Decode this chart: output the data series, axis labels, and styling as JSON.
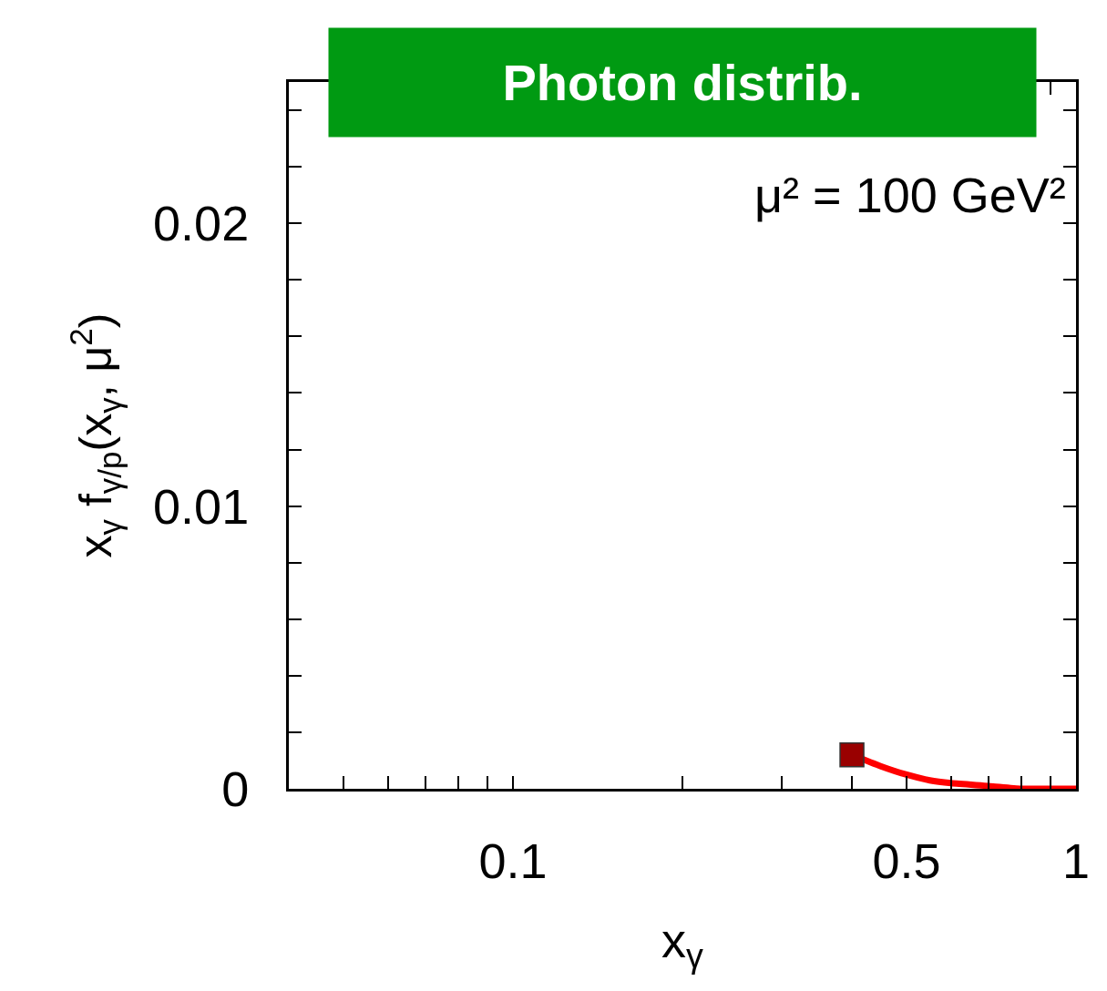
{
  "chart_data": {
    "type": "line",
    "title": "Photon distrib.",
    "xlabel": "x$_{γ}$",
    "ylabel": "x$_{γ}$ f$_{γ/p}$(x$_{γ}$, μ$^{2}$)",
    "annotations": [
      "μ² = 100 GeV²"
    ],
    "log": "x",
    "xlim": [
      0.04,
      1
    ],
    "ylim": [
      0,
      0.025
    ],
    "xticks": [
      {
        "value": 0.04,
        "label": null
      },
      {
        "value": 0.05,
        "label": null
      },
      {
        "value": 0.06,
        "label": null
      },
      {
        "value": 0.07,
        "label": null
      },
      {
        "value": 0.08,
        "label": null
      },
      {
        "value": 0.09,
        "label": null
      },
      0.1,
      {
        "value": 0.2,
        "label": null
      },
      {
        "value": 0.3,
        "label": null
      },
      {
        "value": 0.4,
        "label": null
      },
      0.5,
      {
        "value": 0.6,
        "label": null
      },
      {
        "value": 0.7,
        "label": null
      },
      {
        "value": 0.8,
        "label": null
      },
      {
        "value": 0.9,
        "label": null
      },
      1
    ],
    "yticks": [
      0,
      {
        "value": 0.002,
        "label": null
      },
      {
        "value": 0.004,
        "label": null
      },
      {
        "value": 0.006,
        "label": null
      },
      {
        "value": 0.008,
        "label": null
      },
      0.01,
      {
        "value": 0.012,
        "label": null
      },
      {
        "value": 0.014,
        "label": null
      },
      {
        "value": 0.016,
        "label": null
      },
      {
        "value": 0.018,
        "label": null
      },
      0.02,
      {
        "value": 0.022,
        "label": null
      },
      {
        "value": 0.024,
        "label": null
      }
    ],
    "series": [
      {
        "color": "#ff0000",
        "marker": "none",
        "x": [
          0.4,
          0.45,
          0.5,
          0.55,
          0.6,
          0.7,
          0.8,
          0.9,
          1
        ],
        "values": [
          0.0012,
          0.0008,
          0.0005,
          0.0003,
          0.0002,
          0.0001,
          0,
          0,
          0
        ]
      },
      {
        "type": "scatter",
        "color": "#990000",
        "marker": "square",
        "x": [
          0.4
        ],
        "values": [
          0.0012
        ]
      }
    ]
  }
}
